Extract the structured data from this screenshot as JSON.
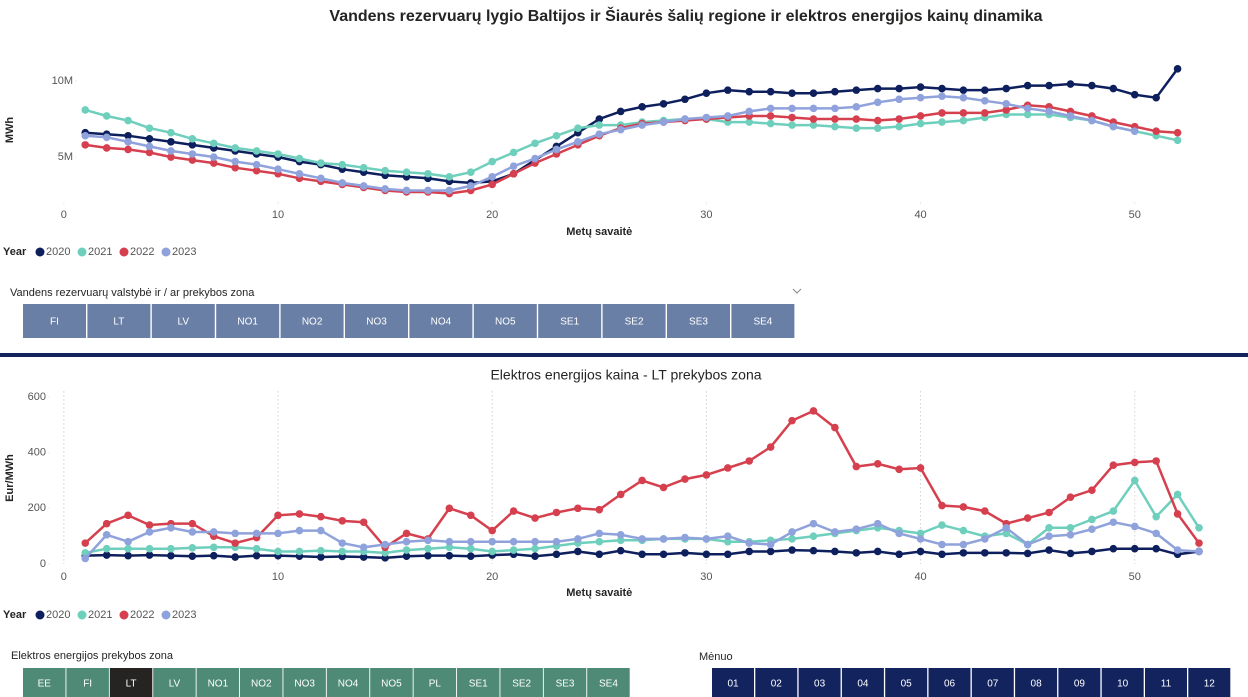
{
  "chart_data": [
    {
      "type": "line",
      "title": "Vandens rezervuarų lygio Baltijos ir Šiaurės šalių regione ir elektros energijos kainų dinamika",
      "x_label": "Metų savaitė",
      "y_label": "MWh",
      "legend_title": "Year",
      "xgrid": false,
      "x": [
        1,
        2,
        3,
        4,
        5,
        6,
        7,
        8,
        9,
        10,
        11,
        12,
        13,
        14,
        15,
        16,
        17,
        18,
        19,
        20,
        21,
        22,
        23,
        24,
        25,
        26,
        27,
        28,
        29,
        30,
        31,
        32,
        33,
        34,
        35,
        36,
        37,
        38,
        39,
        40,
        41,
        42,
        43,
        44,
        45,
        46,
        47,
        48,
        49,
        50,
        51,
        52
      ],
      "xlim": [
        -2,
        53
      ],
      "xticks": [
        0,
        10,
        20,
        30,
        40,
        50
      ],
      "ylim": [
        2200000,
        12000000
      ],
      "yticks": [
        {
          "value": 5000000,
          "label": "5M"
        },
        {
          "value": 10000000,
          "label": "10M"
        }
      ],
      "series": [
        {
          "name": "2020",
          "color": "#0d1f5c",
          "values": [
            6600000,
            6500000,
            6400000,
            6200000,
            6000000,
            5800000,
            5600000,
            5400000,
            5200000,
            5000000,
            4700000,
            4500000,
            4200000,
            4000000,
            3800000,
            3700000,
            3600000,
            3400000,
            3300000,
            3400000,
            3900000,
            4800000,
            5700000,
            6600000,
            7500000,
            8000000,
            8300000,
            8500000,
            8800000,
            9200000,
            9400000,
            9300000,
            9300000,
            9200000,
            9200000,
            9300000,
            9400000,
            9500000,
            9500000,
            9600000,
            9500000,
            9400000,
            9400000,
            9500000,
            9700000,
            9700000,
            9800000,
            9700000,
            9500000,
            9100000,
            8900000,
            10800000
          ]
        },
        {
          "name": "2021",
          "color": "#6fcfbd",
          "values": [
            8100000,
            7700000,
            7400000,
            6900000,
            6600000,
            6200000,
            5900000,
            5600000,
            5400000,
            5200000,
            4900000,
            4600000,
            4500000,
            4300000,
            4100000,
            4000000,
            3900000,
            3700000,
            4000000,
            4700000,
            5300000,
            5900000,
            6400000,
            6900000,
            7100000,
            7100000,
            7300000,
            7400000,
            7500000,
            7500000,
            7300000,
            7300000,
            7200000,
            7100000,
            7100000,
            7000000,
            6900000,
            6900000,
            7000000,
            7200000,
            7300000,
            7400000,
            7600000,
            7800000,
            7800000,
            7800000,
            7600000,
            7400000,
            7000000,
            6700000,
            6400000,
            6100000
          ]
        },
        {
          "name": "2022",
          "color": "#d6404e",
          "values": [
            5800000,
            5600000,
            5500000,
            5300000,
            5000000,
            4800000,
            4600000,
            4300000,
            4100000,
            3900000,
            3600000,
            3400000,
            3200000,
            3000000,
            2800000,
            2700000,
            2700000,
            2600000,
            2800000,
            3200000,
            3900000,
            4600000,
            5200000,
            5800000,
            6400000,
            6900000,
            7200000,
            7300000,
            7400000,
            7500000,
            7600000,
            7700000,
            7700000,
            7600000,
            7500000,
            7500000,
            7500000,
            7400000,
            7500000,
            7700000,
            7900000,
            7900000,
            7900000,
            8100000,
            8400000,
            8300000,
            8000000,
            7700000,
            7300000,
            7000000,
            6700000,
            6600000
          ]
        },
        {
          "name": "2023",
          "color": "#8fa2dc",
          "values": [
            6400000,
            6300000,
            6000000,
            5700000,
            5400000,
            5200000,
            5000000,
            4700000,
            4500000,
            4200000,
            3900000,
            3600000,
            3300000,
            3100000,
            2900000,
            2800000,
            2800000,
            2800000,
            3100000,
            3700000,
            4400000,
            4900000,
            5500000,
            6000000,
            6500000,
            6800000,
            7100000,
            7300000,
            7500000,
            7600000,
            7700000,
            8000000,
            8200000,
            8200000,
            8200000,
            8200000,
            8300000,
            8600000,
            8800000,
            8900000,
            9000000,
            8900000,
            8700000,
            8500000,
            8200000,
            8000000,
            7700000,
            7400000,
            7000000,
            6700000,
            null,
            null
          ]
        }
      ]
    },
    {
      "type": "line",
      "title": "Elektros energijos kaina - LT prekybos zona",
      "x_label": "Metų savaitė",
      "y_label": "Eur/MWh",
      "legend_title": "Year",
      "xgrid": true,
      "x": [
        1,
        2,
        3,
        4,
        5,
        6,
        7,
        8,
        9,
        10,
        11,
        12,
        13,
        14,
        15,
        16,
        17,
        18,
        19,
        20,
        21,
        22,
        23,
        24,
        25,
        26,
        27,
        28,
        29,
        30,
        31,
        32,
        33,
        34,
        35,
        36,
        37,
        38,
        39,
        40,
        41,
        42,
        43,
        44,
        45,
        46,
        47,
        48,
        49,
        50,
        51,
        52,
        53
      ],
      "xlim": [
        -2,
        53
      ],
      "xticks": [
        0,
        10,
        20,
        30,
        40,
        50
      ],
      "ylim": [
        0,
        620
      ],
      "yticks": [
        0,
        200,
        400,
        600
      ],
      "series": [
        {
          "name": "2020",
          "color": "#0d1f5c",
          "values": [
            30,
            32,
            30,
            32,
            30,
            28,
            30,
            25,
            30,
            30,
            28,
            25,
            27,
            25,
            22,
            28,
            30,
            30,
            28,
            32,
            35,
            28,
            35,
            45,
            35,
            48,
            35,
            35,
            40,
            35,
            35,
            45,
            45,
            50,
            48,
            45,
            40,
            45,
            35,
            45,
            35,
            40,
            40,
            40,
            38,
            50,
            38,
            45,
            55,
            55,
            55,
            35,
            45
          ]
        },
        {
          "name": "2021",
          "color": "#6fcfbd",
          "values": [
            40,
            55,
            55,
            55,
            55,
            58,
            60,
            60,
            55,
            45,
            45,
            48,
            45,
            45,
            40,
            50,
            55,
            60,
            55,
            45,
            50,
            55,
            65,
            75,
            80,
            85,
            85,
            90,
            90,
            90,
            80,
            80,
            85,
            90,
            100,
            110,
            120,
            130,
            120,
            110,
            140,
            120,
            100,
            110,
            70,
            130,
            130,
            160,
            190,
            300,
            170,
            250,
            130
          ]
        },
        {
          "name": "2022",
          "color": "#d6404e",
          "values": [
            75,
            145,
            175,
            140,
            145,
            145,
            100,
            75,
            95,
            175,
            180,
            170,
            155,
            150,
            60,
            110,
            90,
            200,
            175,
            120,
            190,
            165,
            185,
            200,
            195,
            250,
            300,
            275,
            305,
            320,
            345,
            370,
            420,
            515,
            550,
            490,
            350,
            360,
            340,
            345,
            210,
            205,
            190,
            145,
            165,
            185,
            240,
            265,
            355,
            365,
            370,
            180,
            75
          ]
        },
        {
          "name": "2023",
          "color": "#8fa2dc",
          "values": [
            20,
            105,
            80,
            115,
            130,
            115,
            115,
            110,
            110,
            110,
            120,
            120,
            75,
            60,
            70,
            80,
            85,
            80,
            80,
            80,
            80,
            80,
            80,
            90,
            110,
            105,
            90,
            90,
            95,
            90,
            100,
            75,
            70,
            115,
            145,
            115,
            125,
            145,
            110,
            90,
            70,
            70,
            90,
            130,
            70,
            100,
            105,
            125,
            150,
            135,
            110,
            50,
            45
          ]
        }
      ]
    }
  ],
  "slicers": [
    {
      "title": "Vandens rezervuarų valstybė ir / ar prekybos zona",
      "color": "#6a7fa6",
      "buttons": [
        "FI",
        "LT",
        "LV",
        "NO1",
        "NO2",
        "NO3",
        "NO4",
        "NO5",
        "SE1",
        "SE2",
        "SE3",
        "SE4"
      ]
    },
    {
      "title": "Elektros energijos prekybos zona",
      "color": "#4f8a77",
      "selected": "LT",
      "buttons": [
        "EE",
        "FI",
        "LT",
        "LV",
        "NO1",
        "NO2",
        "NO3",
        "NO4",
        "NO5",
        "PL",
        "SE1",
        "SE2",
        "SE3",
        "SE4"
      ]
    },
    {
      "title": "Mėnuo",
      "color": "#13235e",
      "buttons": [
        "01",
        "02",
        "03",
        "04",
        "05",
        "06",
        "07",
        "08",
        "09",
        "10",
        "11",
        "12"
      ]
    }
  ]
}
